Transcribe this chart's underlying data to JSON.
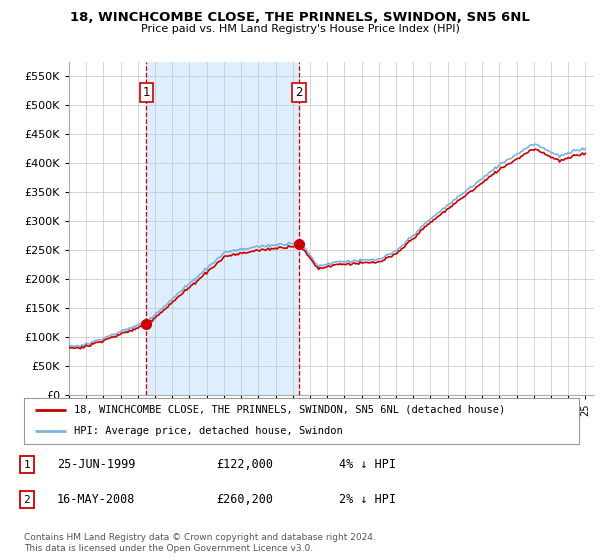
{
  "title": "18, WINCHCOMBE CLOSE, THE PRINNELS, SWINDON, SN5 6NL",
  "subtitle": "Price paid vs. HM Land Registry's House Price Index (HPI)",
  "legend_label_red": "18, WINCHCOMBE CLOSE, THE PRINNELS, SWINDON, SN5 6NL (detached house)",
  "legend_label_blue": "HPI: Average price, detached house, Swindon",
  "transaction1_label": "25-JUN-1999",
  "transaction1_price": "£122,000",
  "transaction1_note": "4% ↓ HPI",
  "transaction2_label": "16-MAY-2008",
  "transaction2_price": "£260,200",
  "transaction2_note": "2% ↓ HPI",
  "footer": "Contains HM Land Registry data © Crown copyright and database right 2024.\nThis data is licensed under the Open Government Licence v3.0.",
  "ylim": [
    0,
    575000
  ],
  "yticks": [
    0,
    50000,
    100000,
    150000,
    200000,
    250000,
    300000,
    350000,
    400000,
    450000,
    500000,
    550000
  ],
  "transaction1_date": 1999.49,
  "transaction2_date": 2008.37,
  "hpi_color": "#7ab3e0",
  "price_color": "#cc0000",
  "vline_color": "#cc0000",
  "shade_color": "#ddeeff",
  "bg_color": "#ffffff",
  "grid_color": "#cccccc"
}
